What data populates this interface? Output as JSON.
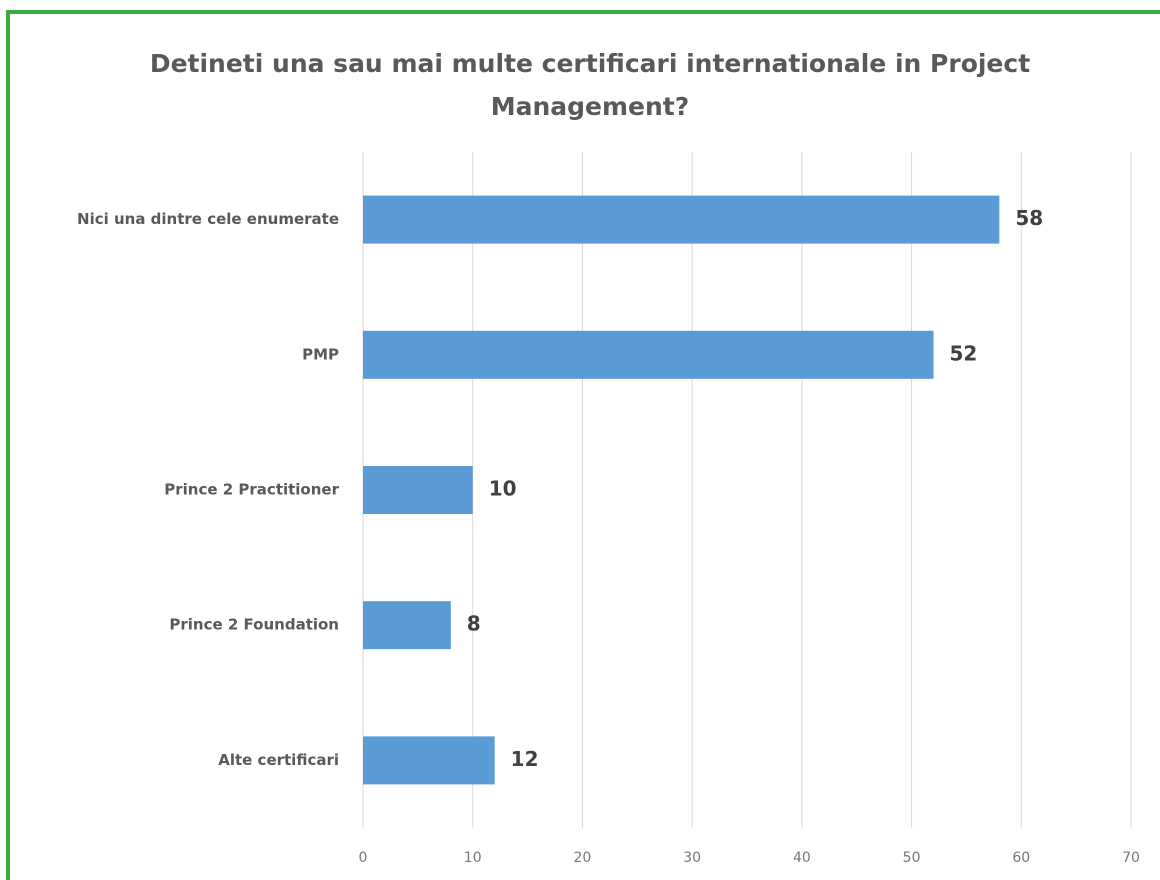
{
  "chart_data": {
    "type": "bar",
    "orientation": "horizontal",
    "title": "Detineti una sau mai multe certificari internationale in Project Management?",
    "categories": [
      "Nici una dintre cele enumerate",
      "PMP",
      "Prince 2 Practitioner",
      "Prince 2 Foundation",
      "Alte certificari"
    ],
    "values": [
      58,
      52,
      10,
      8,
      12
    ],
    "color": "#5b9bd5",
    "xlim": [
      0,
      70
    ],
    "xticks": [
      0,
      10,
      20,
      30,
      40,
      50,
      60,
      70
    ],
    "grid": true
  }
}
